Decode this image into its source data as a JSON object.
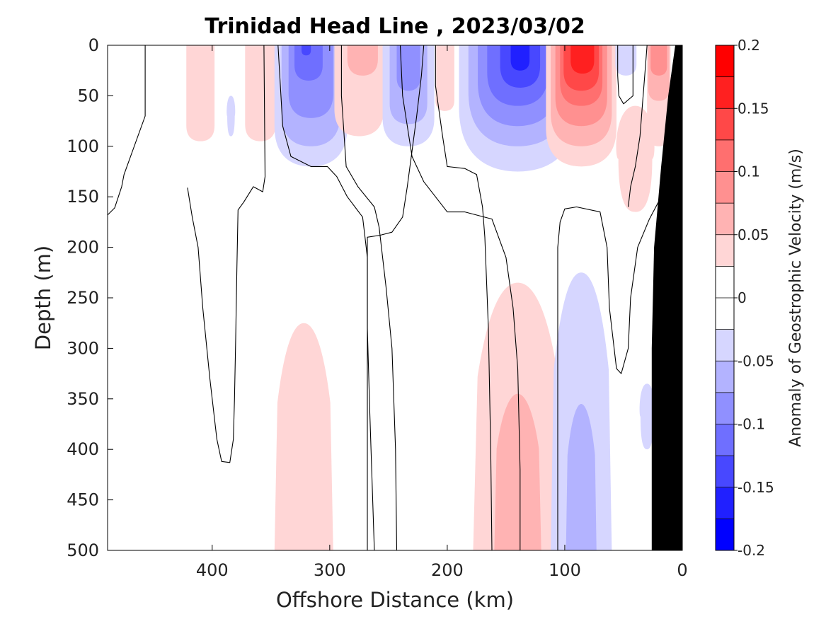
{
  "chart_data": {
    "type": "filled-contour section",
    "title": "Trinidad Head Line , 2023/03/02",
    "xlabel": "Offshore Distance (km)",
    "ylabel": "Depth (m)",
    "xlim": [
      489,
      0
    ],
    "ylim": [
      0,
      500
    ],
    "x_reversed": true,
    "y_reversed": true,
    "xticks": [
      400,
      300,
      200,
      100,
      0
    ],
    "yticks": [
      0,
      50,
      100,
      150,
      200,
      250,
      300,
      350,
      400,
      450,
      500
    ],
    "colorbar": {
      "label": "Anomaly of Geostrophic Velocity (m/s)",
      "range": [
        -0.2,
        0.2
      ],
      "ticks": [
        -0.2,
        -0.15,
        -0.1,
        -0.05,
        0,
        0.05,
        0.1,
        0.15,
        0.2
      ],
      "tick_labels": [
        "-0.2",
        "-0.15",
        "-0.1",
        "-0.05",
        "0",
        "0.05",
        "0.1",
        "0.15",
        "0.2"
      ],
      "levels": [
        -0.2,
        -0.175,
        -0.15,
        -0.125,
        -0.1,
        -0.075,
        -0.05,
        -0.025,
        0,
        0.025,
        0.05,
        0.075,
        0.1,
        0.125,
        0.15,
        0.175,
        0.2
      ],
      "colors": [
        "#0000ff",
        "#2020ff",
        "#4848ff",
        "#6f6fff",
        "#9090ff",
        "#b3b3ff",
        "#d6d6ff",
        "#ffffff",
        "#ffffff",
        "#ffd6d6",
        "#ffb3b3",
        "#ff9090",
        "#ff6f6f",
        "#ff4848",
        "#ff2020",
        "#ff0000"
      ]
    },
    "features": [
      {
        "kind": "positive",
        "level": 0.025,
        "x_center": 410,
        "depth_top": 0,
        "depth_bottom": 95,
        "half_width": 12
      },
      {
        "kind": "negative",
        "level": -0.025,
        "x_center": 384,
        "depth_top": 50,
        "depth_bottom": 90,
        "half_width": 4
      },
      {
        "kind": "positive",
        "level": 0.025,
        "x_center": 359,
        "depth_top": 0,
        "depth_bottom": 95,
        "half_width": 13
      },
      {
        "kind": "negative",
        "level": -0.025,
        "x_center": 316,
        "depth_top": 0,
        "depth_bottom": 120,
        "half_width": 31
      },
      {
        "kind": "negative",
        "level": -0.05,
        "x_center": 316,
        "depth_top": 0,
        "depth_bottom": 100,
        "half_width": 25
      },
      {
        "kind": "negative",
        "level": -0.075,
        "x_center": 316,
        "depth_top": 0,
        "depth_bottom": 72,
        "half_width": 19
      },
      {
        "kind": "negative",
        "level": -0.1,
        "x_center": 318,
        "depth_top": 0,
        "depth_bottom": 35,
        "half_width": 12
      },
      {
        "kind": "negative",
        "level": -0.125,
        "x_center": 320,
        "depth_top": 0,
        "depth_bottom": 10,
        "half_width": 4
      },
      {
        "kind": "positive",
        "level": 0.025,
        "x_center": 275,
        "depth_top": 0,
        "depth_bottom": 90,
        "half_width": 21
      },
      {
        "kind": "positive",
        "level": 0.05,
        "x_center": 272,
        "depth_top": 0,
        "depth_bottom": 30,
        "half_width": 13
      },
      {
        "kind": "negative",
        "level": -0.025,
        "x_center": 233,
        "depth_top": 0,
        "depth_bottom": 100,
        "half_width": 22
      },
      {
        "kind": "negative",
        "level": -0.05,
        "x_center": 233,
        "depth_top": 0,
        "depth_bottom": 78,
        "half_width": 16
      },
      {
        "kind": "negative",
        "level": -0.075,
        "x_center": 233,
        "depth_top": 0,
        "depth_bottom": 45,
        "half_width": 10
      },
      {
        "kind": "positive",
        "level": 0.025,
        "x_center": 202,
        "depth_top": 0,
        "depth_bottom": 65,
        "half_width": 8
      },
      {
        "kind": "negative",
        "level": -0.025,
        "x_center": 140,
        "depth_top": 0,
        "depth_bottom": 125,
        "half_width": 50
      },
      {
        "kind": "negative",
        "level": -0.05,
        "x_center": 140,
        "depth_top": 0,
        "depth_bottom": 100,
        "half_width": 42
      },
      {
        "kind": "negative",
        "level": -0.075,
        "x_center": 140,
        "depth_top": 0,
        "depth_bottom": 80,
        "half_width": 34
      },
      {
        "kind": "negative",
        "level": -0.1,
        "x_center": 140,
        "depth_top": 0,
        "depth_bottom": 60,
        "half_width": 26
      },
      {
        "kind": "negative",
        "level": -0.125,
        "x_center": 138,
        "depth_top": 0,
        "depth_bottom": 42,
        "half_width": 17
      },
      {
        "kind": "negative",
        "level": -0.15,
        "x_center": 138,
        "depth_top": 0,
        "depth_bottom": 25,
        "half_width": 8
      },
      {
        "kind": "positive",
        "level": 0.025,
        "x_center": 86,
        "depth_top": 0,
        "depth_bottom": 120,
        "half_width": 30
      },
      {
        "kind": "positive",
        "level": 0.05,
        "x_center": 86,
        "depth_top": 0,
        "depth_bottom": 100,
        "half_width": 26
      },
      {
        "kind": "positive",
        "level": 0.075,
        "x_center": 86,
        "depth_top": 0,
        "depth_bottom": 80,
        "half_width": 22
      },
      {
        "kind": "positive",
        "level": 0.1,
        "x_center": 86,
        "depth_top": 0,
        "depth_bottom": 60,
        "half_width": 18
      },
      {
        "kind": "positive",
        "level": 0.125,
        "x_center": 86,
        "depth_top": 0,
        "depth_bottom": 45,
        "half_width": 15
      },
      {
        "kind": "positive",
        "level": 0.15,
        "x_center": 85,
        "depth_top": 0,
        "depth_bottom": 28,
        "half_width": 10
      },
      {
        "kind": "negative",
        "level": -0.025,
        "x_center": 48,
        "depth_top": 0,
        "depth_bottom": 30,
        "half_width": 9
      },
      {
        "kind": "positive",
        "level": 0.025,
        "x_center": 40,
        "depth_top": 60,
        "depth_bottom": 165,
        "half_width": 18
      },
      {
        "kind": "positive",
        "level": 0.025,
        "x_center": 20,
        "depth_top": 0,
        "depth_bottom": 100,
        "half_width": 10
      },
      {
        "kind": "positive",
        "level": 0.05,
        "x_center": 20,
        "depth_top": 0,
        "depth_bottom": 55,
        "half_width": 9
      },
      {
        "kind": "positive",
        "level": 0.075,
        "x_center": 20,
        "depth_top": 0,
        "depth_bottom": 30,
        "half_width": 7
      },
      {
        "kind": "positive",
        "level": 0.025,
        "x_center": 322,
        "depth_top": 275,
        "depth_bottom": 500,
        "half_width": 25
      },
      {
        "kind": "positive",
        "level": 0.025,
        "x_center": 140,
        "depth_top": 235,
        "depth_bottom": 500,
        "half_width": 38
      },
      {
        "kind": "positive",
        "level": 0.05,
        "x_center": 140,
        "depth_top": 345,
        "depth_bottom": 500,
        "half_width": 20
      },
      {
        "kind": "negative",
        "level": -0.025,
        "x_center": 86,
        "depth_top": 225,
        "depth_bottom": 500,
        "half_width": 26
      },
      {
        "kind": "negative",
        "level": -0.05,
        "x_center": 86,
        "depth_top": 355,
        "depth_bottom": 500,
        "half_width": 13
      },
      {
        "kind": "negative",
        "level": -0.025,
        "x_center": 30,
        "depth_top": 335,
        "depth_bottom": 400,
        "half_width": 7
      }
    ],
    "zero_contours": [
      [
        [
          421,
          141
        ],
        [
          417,
          170
        ],
        [
          412,
          200
        ],
        [
          408,
          260
        ],
        [
          402,
          330
        ],
        [
          396,
          390
        ],
        [
          392,
          412
        ],
        [
          385,
          413
        ],
        [
          382,
          390
        ],
        [
          381,
          350
        ],
        [
          380,
          290
        ],
        [
          379,
          220
        ],
        [
          378,
          163
        ],
        [
          373,
          155
        ],
        [
          365,
          140
        ],
        [
          357,
          145
        ],
        [
          355,
          130
        ],
        [
          356,
          0
        ]
      ],
      [
        [
          457,
          0
        ],
        [
          457,
          70
        ],
        [
          475,
          128
        ],
        [
          477,
          140
        ],
        [
          483,
          161
        ],
        [
          489,
          168
        ]
      ],
      [
        [
          344,
          0
        ],
        [
          340,
          80
        ],
        [
          333,
          110
        ],
        [
          316,
          120
        ],
        [
          302,
          120
        ],
        [
          294,
          130
        ],
        [
          285,
          150
        ],
        [
          272,
          170
        ],
        [
          270,
          190
        ],
        [
          268,
          210
        ],
        [
          268,
          280
        ],
        [
          266,
          360
        ],
        [
          264,
          430
        ],
        [
          262,
          500
        ]
      ],
      [
        [
          290,
          0
        ],
        [
          290,
          50
        ],
        [
          286,
          120
        ],
        [
          276,
          140
        ],
        [
          262,
          160
        ],
        [
          258,
          180
        ],
        [
          252,
          240
        ],
        [
          247,
          300
        ],
        [
          244,
          400
        ],
        [
          243,
          500
        ]
      ],
      [
        [
          268,
          500
        ],
        [
          268,
          380
        ],
        [
          268,
          250
        ],
        [
          268,
          190
        ],
        [
          257,
          188
        ],
        [
          247,
          185
        ],
        [
          238,
          170
        ],
        [
          234,
          140
        ],
        [
          226,
          70
        ],
        [
          222,
          30
        ],
        [
          220,
          0
        ]
      ],
      [
        [
          210,
          0
        ],
        [
          210,
          40
        ],
        [
          204,
          90
        ],
        [
          200,
          120
        ],
        [
          185,
          122
        ],
        [
          175,
          128
        ],
        [
          170,
          160
        ],
        [
          168,
          190
        ],
        [
          165,
          280
        ],
        [
          163,
          400
        ],
        [
          162,
          500
        ]
      ],
      [
        [
          138,
          500
        ],
        [
          138,
          420
        ],
        [
          140,
          320
        ],
        [
          144,
          260
        ],
        [
          150,
          210
        ],
        [
          162,
          172
        ],
        [
          185,
          165
        ],
        [
          200,
          165
        ],
        [
          220,
          135
        ],
        [
          230,
          110
        ],
        [
          238,
          50
        ],
        [
          240,
          0
        ]
      ],
      [
        [
          106,
          500
        ],
        [
          106,
          400
        ],
        [
          106,
          300
        ],
        [
          106,
          200
        ],
        [
          104,
          175
        ],
        [
          100,
          162
        ],
        [
          90,
          160
        ],
        [
          70,
          165
        ],
        [
          64,
          200
        ],
        [
          62,
          260
        ],
        [
          56,
          320
        ],
        [
          52,
          325
        ],
        [
          46,
          300
        ],
        [
          44,
          250
        ],
        [
          38,
          200
        ],
        [
          28,
          172
        ],
        [
          18,
          150
        ],
        [
          12,
          138
        ]
      ],
      [
        [
          55,
          0
        ],
        [
          55,
          30
        ],
        [
          54,
          50
        ],
        [
          50,
          58
        ],
        [
          42,
          50
        ],
        [
          42,
          0
        ]
      ],
      [
        [
          30,
          0
        ],
        [
          32,
          30
        ],
        [
          34,
          60
        ],
        [
          36,
          90
        ],
        [
          40,
          120
        ],
        [
          44,
          140
        ],
        [
          46,
          160
        ]
      ]
    ],
    "bathymetry": [
      [
        26,
        500
      ],
      [
        0,
        500
      ],
      [
        0,
        0
      ],
      [
        6,
        0
      ],
      [
        12,
        50
      ],
      [
        18,
        120
      ],
      [
        24,
        200
      ],
      [
        26,
        300
      ]
    ]
  }
}
